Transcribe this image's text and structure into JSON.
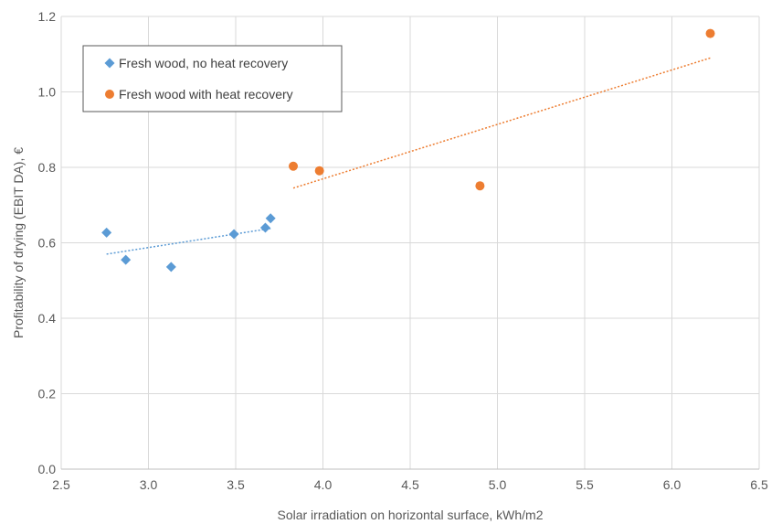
{
  "chart_data": {
    "type": "scatter",
    "xlabel": "Solar irradiation on horizontal surface, kWh/m2",
    "ylabel": "Profitability of drying (EBIT DA), €",
    "xlim": [
      2.5,
      6.5
    ],
    "ylim": [
      0.0,
      1.2
    ],
    "x_ticks": [
      "2.5",
      "3.0",
      "3.5",
      "4.0",
      "4.5",
      "5.0",
      "5.5",
      "6.0",
      "6.5"
    ],
    "y_ticks": [
      "0.0",
      "0.2",
      "0.4",
      "0.6",
      "0.8",
      "1.0",
      "1.2"
    ],
    "grid": true,
    "legend_position": "top-left",
    "series": [
      {
        "name": "Fresh wood, no heat recovery",
        "marker": "diamond",
        "color": "#5B9BD5",
        "points": [
          {
            "x": 2.76,
            "y": 0.627
          },
          {
            "x": 2.87,
            "y": 0.555
          },
          {
            "x": 3.13,
            "y": 0.536
          },
          {
            "x": 3.49,
            "y": 0.623
          },
          {
            "x": 3.67,
            "y": 0.64
          },
          {
            "x": 3.7,
            "y": 0.665
          }
        ],
        "trendline": {
          "x": [
            2.76,
            3.7
          ],
          "y": [
            0.57,
            0.638
          ]
        }
      },
      {
        "name": "Fresh wood with heat recovery",
        "marker": "circle",
        "color": "#ED7D31",
        "points": [
          {
            "x": 3.83,
            "y": 0.803
          },
          {
            "x": 3.98,
            "y": 0.791
          },
          {
            "x": 4.9,
            "y": 0.751
          },
          {
            "x": 6.22,
            "y": 1.155
          }
        ],
        "trendline": {
          "x": [
            3.83,
            6.22
          ],
          "y": [
            0.745,
            1.09
          ]
        }
      }
    ]
  }
}
